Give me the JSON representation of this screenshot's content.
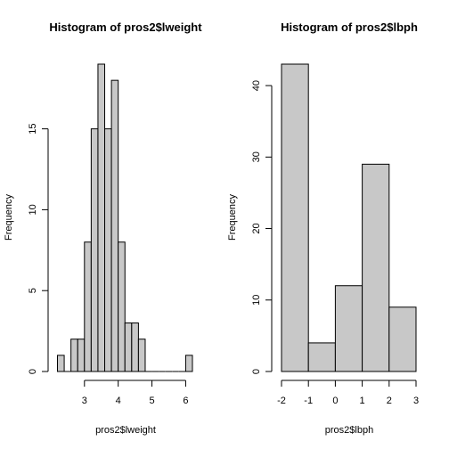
{
  "chart_data": [
    {
      "type": "bar",
      "title": "Histogram of pros2$lweight",
      "xlabel": "pros2$lweight",
      "ylabel": "Frequency",
      "bin_edges": [
        2.2,
        2.4,
        2.6,
        2.8,
        3.0,
        3.2,
        3.4,
        3.6,
        3.8,
        4.0,
        4.2,
        4.4,
        4.6,
        4.8,
        5.0,
        5.2,
        5.4,
        5.6,
        5.8,
        6.0,
        6.2
      ],
      "values": [
        1,
        0,
        2,
        2,
        8,
        15,
        19,
        15,
        18,
        8,
        3,
        3,
        2,
        0,
        0,
        0,
        0,
        0,
        0,
        1
      ],
      "xlim": [
        2.2,
        6.2
      ],
      "ylim": [
        0,
        19
      ],
      "xticks": [
        3,
        4,
        5,
        6
      ],
      "yticks": [
        0,
        5,
        10,
        15
      ],
      "grid": false
    },
    {
      "type": "bar",
      "title": "Histogram of pros2$lbph",
      "xlabel": "pros2$lbph",
      "ylabel": "Frequency",
      "bin_edges": [
        -2,
        -1,
        0,
        1,
        2,
        3
      ],
      "values": [
        43,
        4,
        12,
        29,
        9
      ],
      "xlim": [
        -2,
        3
      ],
      "ylim": [
        0,
        43
      ],
      "xticks": [
        -2,
        -1,
        0,
        1,
        2,
        3
      ],
      "yticks": [
        0,
        10,
        20,
        30,
        40
      ],
      "grid": false
    }
  ]
}
